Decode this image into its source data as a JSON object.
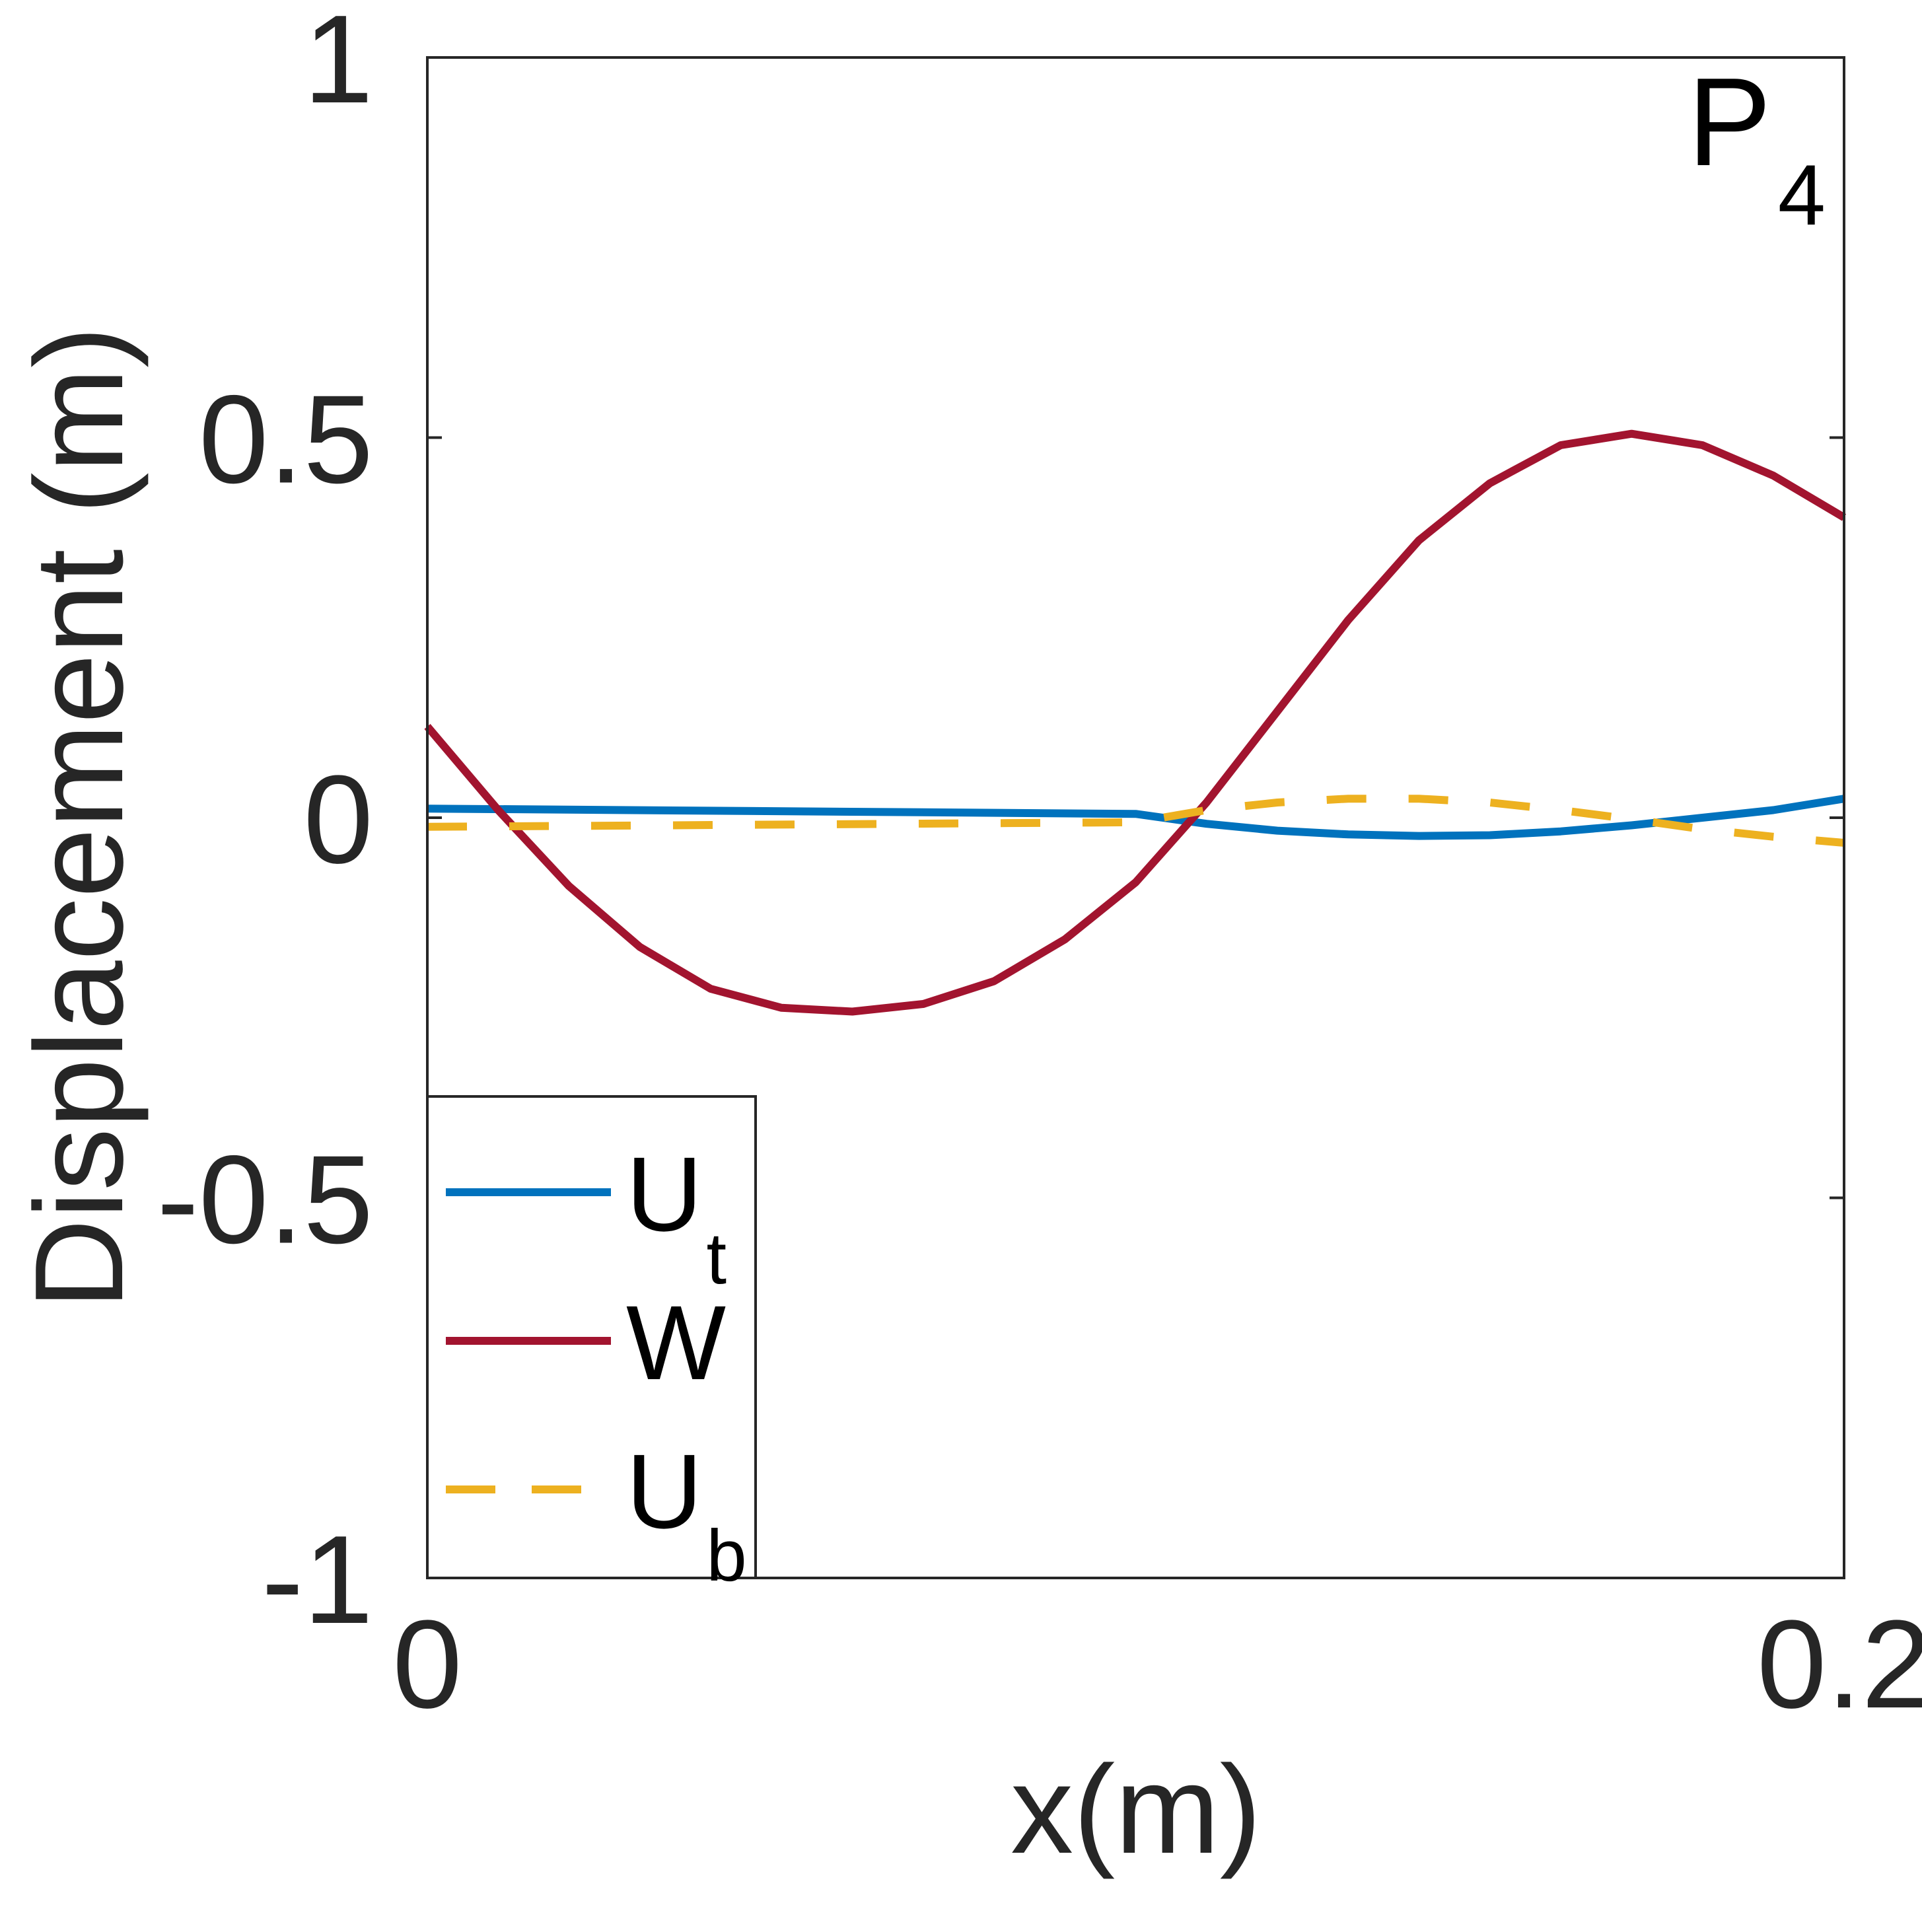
{
  "chart_data": {
    "type": "line",
    "xlabel": "x(m)",
    "ylabel": "Displacement (m)",
    "xlim": [
      0,
      0.2
    ],
    "ylim": [
      -1,
      1
    ],
    "xticks": [
      {
        "value": 0,
        "label": "0"
      },
      {
        "value": 0.2,
        "label": "0.2"
      }
    ],
    "yticks": [
      {
        "value": 1,
        "label": "1"
      },
      {
        "value": 0.5,
        "label": "0.5"
      },
      {
        "value": 0,
        "label": "0"
      },
      {
        "value": -0.5,
        "label": "-0.5"
      },
      {
        "value": -1,
        "label": "-1"
      }
    ],
    "annotation": {
      "main": "P",
      "sub": "4"
    },
    "legend_position": "bottom-left",
    "grid": false,
    "series": [
      {
        "name": "U",
        "sub": "t",
        "color": "#0072BD",
        "style": "solid",
        "points": [
          [
            0,
            0.012
          ],
          [
            0.1,
            0.005
          ],
          [
            0.11,
            -0.008
          ],
          [
            0.12,
            -0.017
          ],
          [
            0.13,
            -0.022
          ],
          [
            0.14,
            -0.024
          ],
          [
            0.15,
            -0.023
          ],
          [
            0.16,
            -0.018
          ],
          [
            0.17,
            -0.01
          ],
          [
            0.18,
            0.0
          ],
          [
            0.19,
            0.01
          ],
          [
            0.2,
            0.025
          ]
        ]
      },
      {
        "name": "W",
        "sub": "",
        "color": "#A2142F",
        "style": "solid",
        "points": [
          [
            0,
            0.12
          ],
          [
            0.01,
            0.01
          ],
          [
            0.02,
            -0.09
          ],
          [
            0.03,
            -0.17
          ],
          [
            0.04,
            -0.225
          ],
          [
            0.05,
            -0.25
          ],
          [
            0.06,
            -0.255
          ],
          [
            0.07,
            -0.245
          ],
          [
            0.08,
            -0.215
          ],
          [
            0.09,
            -0.16
          ],
          [
            0.1,
            -0.085
          ],
          [
            0.11,
            0.02
          ],
          [
            0.12,
            0.14
          ],
          [
            0.13,
            0.26
          ],
          [
            0.14,
            0.365
          ],
          [
            0.15,
            0.44
          ],
          [
            0.16,
            0.49
          ],
          [
            0.17,
            0.505
          ],
          [
            0.18,
            0.49
          ],
          [
            0.19,
            0.45
          ],
          [
            0.2,
            0.395
          ]
        ]
      },
      {
        "name": "U",
        "sub": "b",
        "color": "#EDB120",
        "style": "dashed",
        "points": [
          [
            0,
            -0.012
          ],
          [
            0.05,
            -0.009
          ],
          [
            0.1,
            -0.006
          ],
          [
            0.11,
            0.01
          ],
          [
            0.12,
            0.02
          ],
          [
            0.13,
            0.025
          ],
          [
            0.14,
            0.025
          ],
          [
            0.15,
            0.02
          ],
          [
            0.16,
            0.01
          ],
          [
            0.17,
            -0.002
          ],
          [
            0.18,
            -0.015
          ],
          [
            0.19,
            -0.025
          ],
          [
            0.2,
            -0.033
          ]
        ]
      }
    ]
  }
}
